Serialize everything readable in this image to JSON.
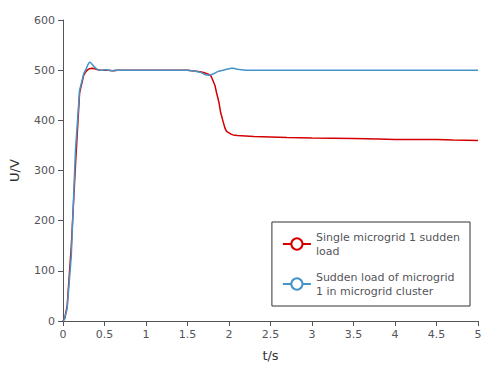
{
  "chart_data": {
    "type": "line",
    "title": "",
    "xlabel": "t/s",
    "ylabel": "U/V",
    "xlim": [
      0,
      5
    ],
    "ylim": [
      0,
      600
    ],
    "xticks": [
      0,
      0.5,
      1,
      1.5,
      2,
      2.5,
      3,
      3.5,
      4,
      4.5,
      5
    ],
    "yticks": [
      0,
      100,
      200,
      300,
      400,
      500,
      600
    ],
    "grid": false,
    "legend": "lower right",
    "series": [
      {
        "name": "Single microgrid 1 sudden\nload",
        "color": "#d40000",
        "x": [
          0,
          0.02,
          0.05,
          0.1,
          0.15,
          0.2,
          0.25,
          0.28,
          0.3,
          0.32,
          0.35,
          0.38,
          0.4,
          0.42,
          0.45,
          0.5,
          0.55,
          0.6,
          0.62,
          0.65,
          0.7,
          0.8,
          1.0,
          1.2,
          1.4,
          1.5,
          1.55,
          1.6,
          1.65,
          1.68,
          1.7,
          1.72,
          1.75,
          1.78,
          1.8,
          1.83,
          1.85,
          1.88,
          1.9,
          1.93,
          1.95,
          1.97,
          2.0,
          2.03,
          2.05,
          2.1,
          2.2,
          2.3,
          2.5,
          2.7,
          3.0,
          3.5,
          3.8,
          4.0,
          4.3,
          4.5,
          4.7,
          5.0
        ],
        "values": [
          0,
          5,
          30,
          150,
          310,
          455,
          490,
          498,
          501,
          503,
          504,
          503,
          502,
          501,
          500,
          500,
          500,
          499,
          499,
          500,
          500,
          500,
          500,
          500,
          500,
          500,
          499,
          498,
          497,
          496,
          495,
          494,
          492,
          489,
          482,
          470,
          455,
          435,
          415,
          397,
          385,
          378,
          375,
          372,
          371,
          370,
          369,
          368,
          367,
          366,
          365,
          364,
          363,
          362,
          362,
          362,
          361,
          360
        ]
      },
      {
        "name": "Sudden load of microgrid\n1 in microgrid cluster",
        "color": "#4494c8",
        "x": [
          0,
          0.02,
          0.05,
          0.1,
          0.15,
          0.2,
          0.25,
          0.28,
          0.3,
          0.32,
          0.34,
          0.36,
          0.38,
          0.4,
          0.42,
          0.45,
          0.48,
          0.5,
          0.52,
          0.55,
          0.58,
          0.6,
          0.62,
          0.65,
          0.68,
          0.7,
          0.8,
          1.0,
          1.2,
          1.4,
          1.5,
          1.55,
          1.6,
          1.65,
          1.68,
          1.7,
          1.72,
          1.75,
          1.78,
          1.8,
          1.83,
          1.85,
          1.88,
          1.9,
          1.93,
          1.95,
          1.97,
          2.0,
          2.03,
          2.05,
          2.08,
          2.1,
          2.15,
          2.2,
          2.3,
          2.5,
          2.6,
          2.8,
          3.0,
          3.2,
          3.5,
          3.8,
          4.0,
          4.3,
          4.5,
          4.8,
          5.0
        ],
        "values": [
          0,
          4,
          25,
          130,
          340,
          460,
          493,
          503,
          511,
          516,
          514,
          510,
          506,
          503,
          501,
          500,
          500,
          501,
          501,
          500,
          499,
          499,
          500,
          500,
          500,
          500,
          500,
          500,
          500,
          500,
          500,
          499,
          498,
          496,
          494,
          492,
          491,
          490,
          491,
          492,
          494,
          496,
          498,
          499,
          500,
          501,
          502,
          503,
          504,
          504,
          503,
          502,
          501,
          500,
          500,
          500,
          500,
          500,
          500,
          500,
          500,
          500,
          500,
          500,
          500,
          500,
          500
        ]
      }
    ]
  }
}
